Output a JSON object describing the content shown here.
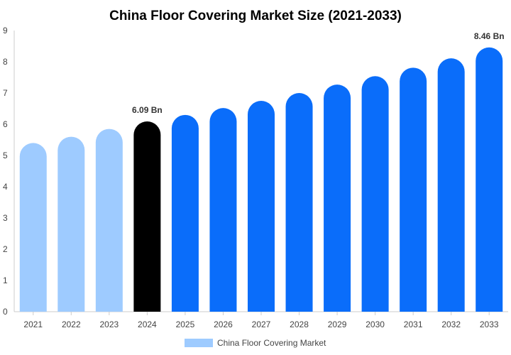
{
  "chart_data": {
    "type": "bar",
    "title": "China Floor Covering Market Size (2021-2033)",
    "xlabel": "",
    "ylabel": "",
    "categories": [
      "2021",
      "2022",
      "2023",
      "2024",
      "2025",
      "2026",
      "2027",
      "2028",
      "2029",
      "2030",
      "2031",
      "2032",
      "2033"
    ],
    "series": [
      {
        "name": "China Floor Covering Market",
        "values": [
          5.4,
          5.6,
          5.85,
          6.09,
          6.3,
          6.52,
          6.75,
          7.0,
          7.27,
          7.54,
          7.81,
          8.11,
          8.46
        ]
      }
    ],
    "bar_colors": [
      "#9ecbff",
      "#9ecbff",
      "#9ecbff",
      "#000000",
      "#0a6dfa",
      "#0a6dfa",
      "#0a6dfa",
      "#0a6dfa",
      "#0a6dfa",
      "#0a6dfa",
      "#0a6dfa",
      "#0a6dfa",
      "#0a6dfa"
    ],
    "data_labels": [
      {
        "category": "2024",
        "text": "6.09 Bn"
      },
      {
        "category": "2033",
        "text": "8.46 Bn"
      }
    ],
    "ylim": [
      0,
      9
    ],
    "yticks": [
      "0",
      "1",
      "2",
      "3",
      "4",
      "5",
      "6",
      "7",
      "8",
      "9"
    ],
    "grid": false,
    "legend_position": "bottom",
    "legend_color": "#9ecbff",
    "axis_color": "#cccccc"
  }
}
